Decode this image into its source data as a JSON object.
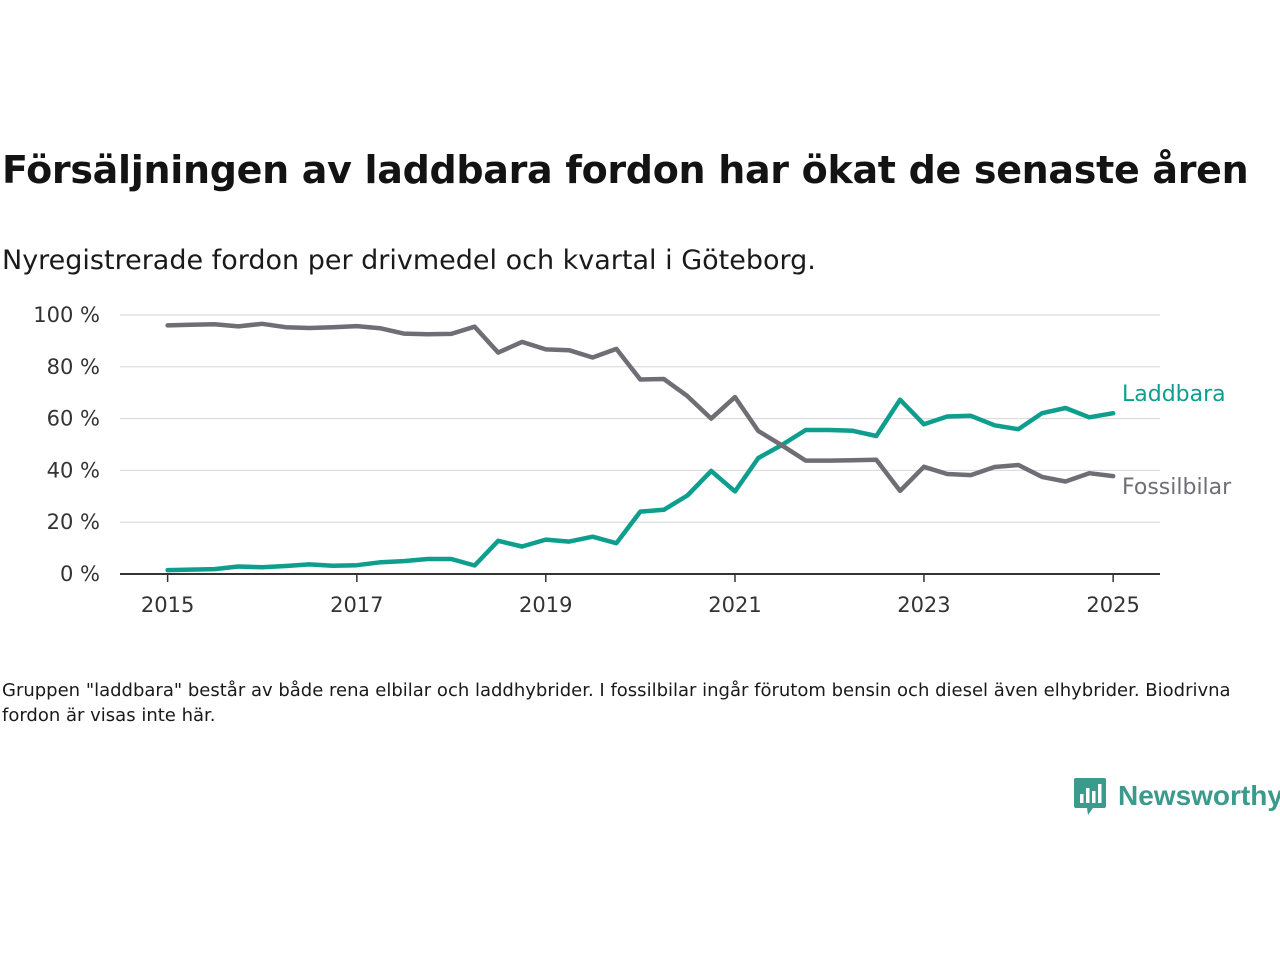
{
  "title": "Försäljningen av laddbara fordon har ökat de senaste åren",
  "subtitle": "Nyregistrerade fordon per drivmedel och kvartal i Göteborg.",
  "note": "Gruppen \"laddbara\" består av både rena elbilar och laddhybrider. I fossilbilar ingår förutom bensin och diesel även elhybrider. Biodrivna fordon är visas inte här.",
  "brand": {
    "name": "Newsworthy",
    "color": "#3b9a8c"
  },
  "chart_data": {
    "type": "line",
    "title": "Försäljningen av laddbara fordon har ökat de senaste åren",
    "subtitle": "Nyregistrerade fordon per drivmedel och kvartal i Göteborg.",
    "xlabel": "",
    "ylabel": "",
    "x_ticks": [
      "2015",
      "2017",
      "2019",
      "2021",
      "2023",
      "2025"
    ],
    "y_ticks": [
      "0 %",
      "20 %",
      "40 %",
      "60 %",
      "80 %",
      "100 %"
    ],
    "ylim": [
      0,
      100
    ],
    "xlim": [
      "2014-07-01",
      "2025-07-01"
    ],
    "grid": true,
    "legend": "direct labels at line ends (right)",
    "x": [
      "2015-01-01",
      "2015-04-01",
      "2015-07-01",
      "2015-10-01",
      "2016-01-01",
      "2016-04-01",
      "2016-07-01",
      "2016-10-01",
      "2017-01-01",
      "2017-04-01",
      "2017-07-01",
      "2017-10-01",
      "2018-01-01",
      "2018-04-01",
      "2018-07-01",
      "2018-10-01",
      "2019-01-01",
      "2019-04-01",
      "2019-07-01",
      "2019-10-01",
      "2020-01-01",
      "2020-04-01",
      "2020-07-01",
      "2020-10-01",
      "2021-01-01",
      "2021-04-01",
      "2021-07-01",
      "2021-10-01",
      "2022-01-01",
      "2022-04-01",
      "2022-07-01",
      "2022-10-01",
      "2023-01-01",
      "2023-04-01",
      "2023-07-01",
      "2023-10-01",
      "2024-01-01",
      "2024-04-01",
      "2024-07-01",
      "2024-10-01",
      "2025-01-01"
    ],
    "series": [
      {
        "name": "Laddbara",
        "color": "#0e9e8e",
        "values": [
          1.5,
          1.7,
          1.9,
          2.9,
          2.6,
          3.1,
          3.7,
          3.2,
          3.4,
          4.5,
          5.0,
          5.8,
          5.8,
          3.3,
          12.8,
          10.6,
          13.3,
          12.5,
          14.4,
          11.9,
          24.1,
          24.8,
          30.3,
          39.8,
          31.9,
          44.8,
          49.8,
          55.6,
          55.6,
          55.3,
          53.3,
          67.3,
          57.8,
          60.8,
          61.1,
          57.4,
          55.9,
          62.1,
          64.1,
          60.5,
          62.1
        ]
      },
      {
        "name": "Fossilbilar",
        "color": "#6f6e74",
        "values": [
          96.0,
          96.2,
          96.4,
          95.6,
          96.6,
          95.3,
          95.0,
          95.3,
          95.7,
          94.9,
          92.8,
          92.6,
          92.7,
          95.5,
          85.5,
          89.6,
          86.7,
          86.4,
          83.6,
          86.9,
          75.1,
          75.3,
          68.7,
          60.0,
          68.3,
          55.2,
          49.7,
          43.8,
          43.8,
          43.9,
          44.1,
          32.1,
          41.4,
          38.6,
          38.2,
          41.3,
          42.1,
          37.5,
          35.7,
          38.9,
          37.8
        ]
      }
    ]
  }
}
